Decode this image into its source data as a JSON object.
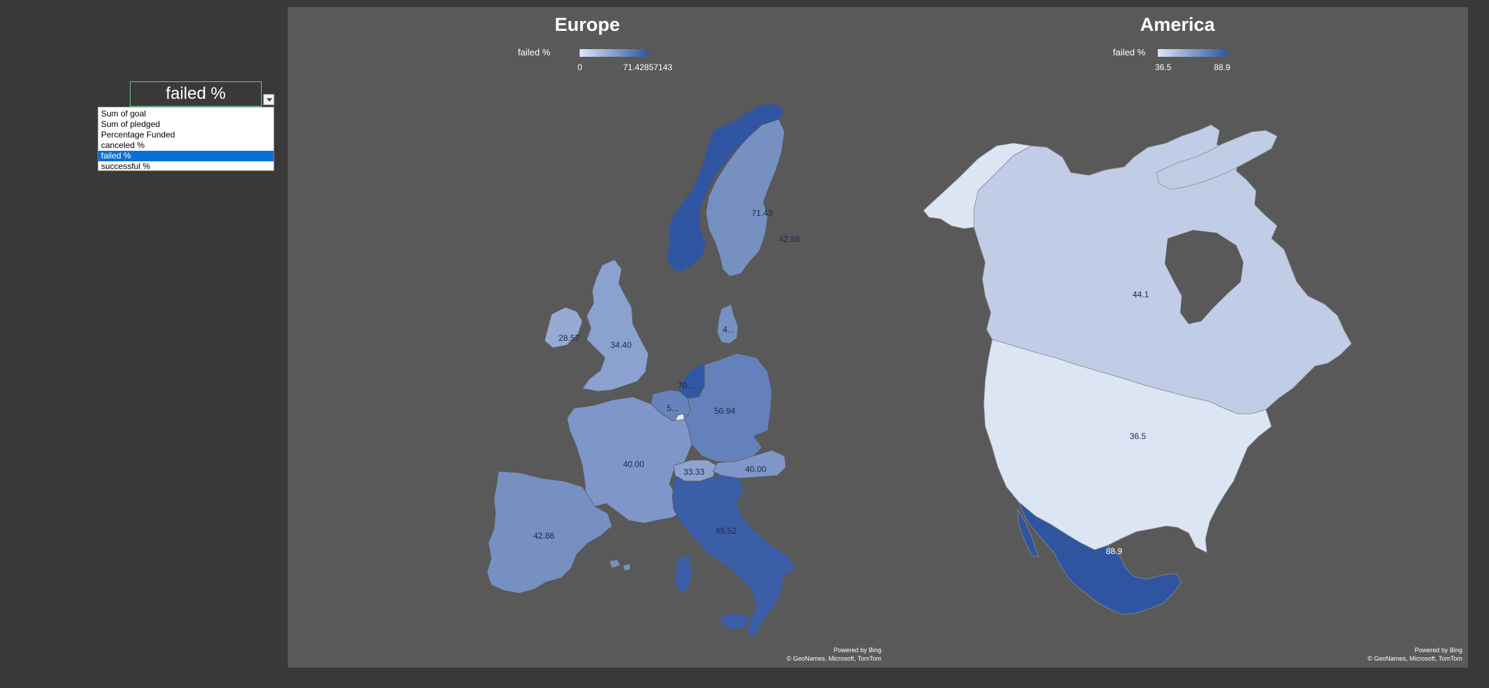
{
  "selector": {
    "current_value": "failed %",
    "options": [
      "Sum of goal",
      "Sum of pledged",
      "Percentage Funded",
      "canceled %",
      "failed %",
      "successful %"
    ],
    "selected_index": 4
  },
  "maps": {
    "europe": {
      "title": "Europe",
      "legend": {
        "label": "failed %",
        "min": "0",
        "max": "71.42857143"
      },
      "regions": [
        {
          "name": "Norway",
          "label": "71.43",
          "value": 71.43,
          "color": "#3055a2"
        },
        {
          "name": "Sweden",
          "label": "42.86",
          "value": 42.86,
          "color": "#7690c2"
        },
        {
          "name": "Denmark",
          "label": "4...",
          "value": 42.0,
          "color": "#7690c2"
        },
        {
          "name": "Ireland",
          "label": "28.57",
          "value": 28.57,
          "color": "#97aad4"
        },
        {
          "name": "United Kingdom",
          "label": "34.40",
          "value": 34.4,
          "color": "#8ba1cf"
        },
        {
          "name": "Netherlands",
          "label": "70...",
          "value": 70.0,
          "color": "#3257a4"
        },
        {
          "name": "Belgium",
          "label": "5...",
          "value": 50.0,
          "color": "#6783bc"
        },
        {
          "name": "Germany",
          "label": "50.94",
          "value": 50.94,
          "color": "#6581bb"
        },
        {
          "name": "France",
          "label": "40.00",
          "value": 40.0,
          "color": "#7f96c8"
        },
        {
          "name": "Switzerland",
          "label": "33.33",
          "value": 33.33,
          "color": "#8ea3cf"
        },
        {
          "name": "Austria",
          "label": "40.00",
          "value": 40.0,
          "color": "#7f96c8"
        },
        {
          "name": "Italy",
          "label": "65.52",
          "value": 65.52,
          "color": "#3b5ea8"
        },
        {
          "name": "Spain",
          "label": "42.86",
          "value": 42.86,
          "color": "#7690c2"
        },
        {
          "name": "Luxembourg",
          "label": "",
          "value": 0,
          "color": "#e3e9f5"
        }
      ],
      "credit_line1": "Powered by Bing",
      "credit_line2": "© GeoNames, Microsoft, TomTom"
    },
    "america": {
      "title": "America",
      "legend": {
        "label": "failed %",
        "min": "36.5",
        "max": "88.9"
      },
      "regions": [
        {
          "name": "Canada",
          "label": "44.1",
          "value": 44.1,
          "color": "#c1cde6"
        },
        {
          "name": "United States",
          "label": "36.5",
          "value": 36.5,
          "color": "#dce5f4"
        },
        {
          "name": "Mexico",
          "label": "88.9",
          "value": 88.9,
          "color": "#2f55a1"
        }
      ],
      "credit_line1": "Powered by Bing",
      "credit_line2": "© GeoNames, Microsoft, TomTom"
    }
  },
  "colors": {
    "page_background": "#393939",
    "chart_background": "#595959",
    "selection_highlight": "#0a6fd6",
    "cell_border": "#5fd08f"
  }
}
